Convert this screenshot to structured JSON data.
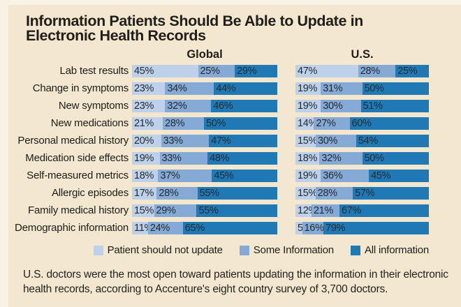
{
  "chart_data": {
    "type": "bar",
    "variant": "horizontal-stacked-grouped",
    "title": "Information Patients Should Be Able to Update in Electronic Health Records",
    "title_lines": [
      "Information Patients Should Be Able to Update in",
      "Electronic Health Records"
    ],
    "group_headers": [
      "Global",
      "U.S."
    ],
    "unit": "%",
    "legend": [
      {
        "label": "Patient should not update",
        "color": "#bdd2ea"
      },
      {
        "label": "Some Information",
        "color": "#85aad6"
      },
      {
        "label": "All information",
        "color": "#1f79b5"
      }
    ],
    "rows": [
      {
        "label": "Lab test results",
        "global": [
          45,
          25,
          29
        ],
        "us": [
          47,
          28,
          25
        ]
      },
      {
        "label": "Change in symptoms",
        "global": [
          23,
          34,
          44
        ],
        "us": [
          19,
          31,
          50
        ]
      },
      {
        "label": "New symptoms",
        "global": [
          23,
          32,
          46
        ],
        "us": [
          19,
          30,
          51
        ]
      },
      {
        "label": "New medications",
        "global": [
          21,
          28,
          50
        ],
        "us": [
          14,
          27,
          60
        ]
      },
      {
        "label": "Personal medical history",
        "global": [
          20,
          33,
          47
        ],
        "us": [
          15,
          30,
          54
        ]
      },
      {
        "label": "Medication side effects",
        "global": [
          19,
          33,
          48
        ],
        "us": [
          18,
          32,
          50
        ]
      },
      {
        "label": "Self-measured metrics",
        "global": [
          18,
          37,
          45
        ],
        "us": [
          19,
          36,
          45
        ]
      },
      {
        "label": "Allergic episodes",
        "global": [
          17,
          28,
          55
        ],
        "us": [
          15,
          28,
          57
        ]
      },
      {
        "label": "Family medical history",
        "global": [
          15,
          29,
          55
        ],
        "us": [
          12,
          21,
          67
        ]
      },
      {
        "label": "Demographic information",
        "global": [
          11,
          24,
          65
        ],
        "us": [
          5,
          16,
          79
        ]
      }
    ],
    "footer_lines": [
      "U.S. doctors were the most open toward patients updating the information in their electronic",
      "health records, according to Accenture's eight country survey of 3,700 doctors."
    ]
  },
  "colors": {
    "background": "#f3e7d0",
    "bar_label_text": "#232a30",
    "heading_text": "#211e19"
  }
}
